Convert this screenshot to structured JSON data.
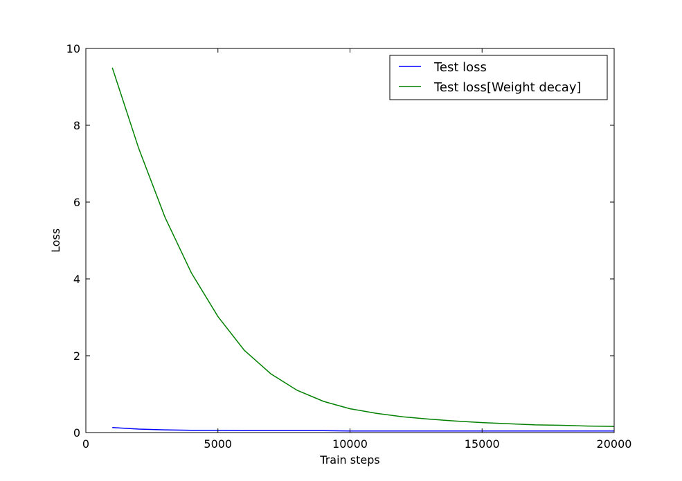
{
  "chart_data": {
    "type": "line",
    "xlabel": "Train steps",
    "ylabel": "Loss",
    "xlim": [
      0,
      20000
    ],
    "ylim": [
      0,
      10
    ],
    "xticks": [
      0,
      5000,
      10000,
      15000,
      20000
    ],
    "yticks": [
      0,
      2,
      4,
      6,
      8,
      10
    ],
    "grid": false,
    "legend_position": "top-right",
    "x": [
      1000,
      2000,
      3000,
      4000,
      5000,
      6000,
      7000,
      8000,
      9000,
      10000,
      11000,
      12000,
      13000,
      14000,
      15000,
      16000,
      17000,
      18000,
      19000,
      20000
    ],
    "series": [
      {
        "name": "Test loss",
        "color": "#0000ff",
        "values": [
          0.13,
          0.09,
          0.07,
          0.06,
          0.06,
          0.05,
          0.05,
          0.05,
          0.05,
          0.04,
          0.04,
          0.04,
          0.04,
          0.04,
          0.04,
          0.04,
          0.04,
          0.04,
          0.04,
          0.04
        ]
      },
      {
        "name": "Test loss[Weight decay]",
        "color": "#008000",
        "values": [
          9.5,
          7.4,
          5.6,
          4.15,
          3.02,
          2.14,
          1.53,
          1.1,
          0.81,
          0.62,
          0.5,
          0.41,
          0.35,
          0.3,
          0.26,
          0.23,
          0.2,
          0.19,
          0.17,
          0.16
        ]
      }
    ]
  }
}
